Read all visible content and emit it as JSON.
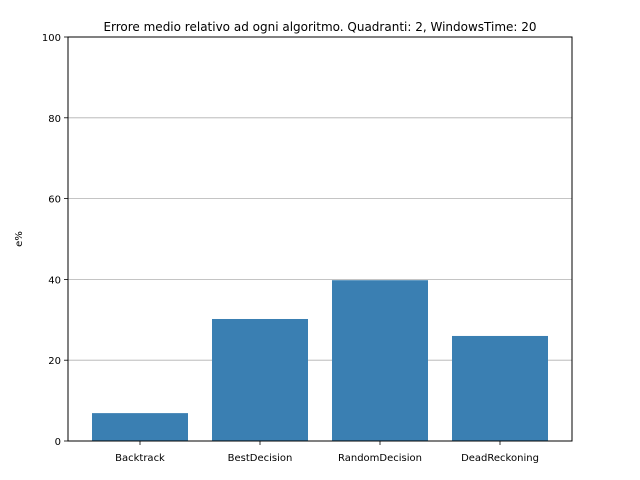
{
  "chart_data": {
    "type": "bar",
    "title": "Errore medio relativo ad ogni algoritmo. Quadranti: 2, WindowsTime: 20",
    "xlabel": "",
    "ylabel": "e%",
    "categories": [
      "Backtrack",
      "BestDecision",
      "RandomDecision",
      "DeadReckoning"
    ],
    "values": [
      6.9,
      30.2,
      39.8,
      26.0
    ],
    "ylim": [
      0,
      100
    ],
    "yticks": [
      0,
      20,
      40,
      60,
      80,
      100
    ],
    "grid": "horizontal",
    "bar_color": "#3a7fb2"
  }
}
